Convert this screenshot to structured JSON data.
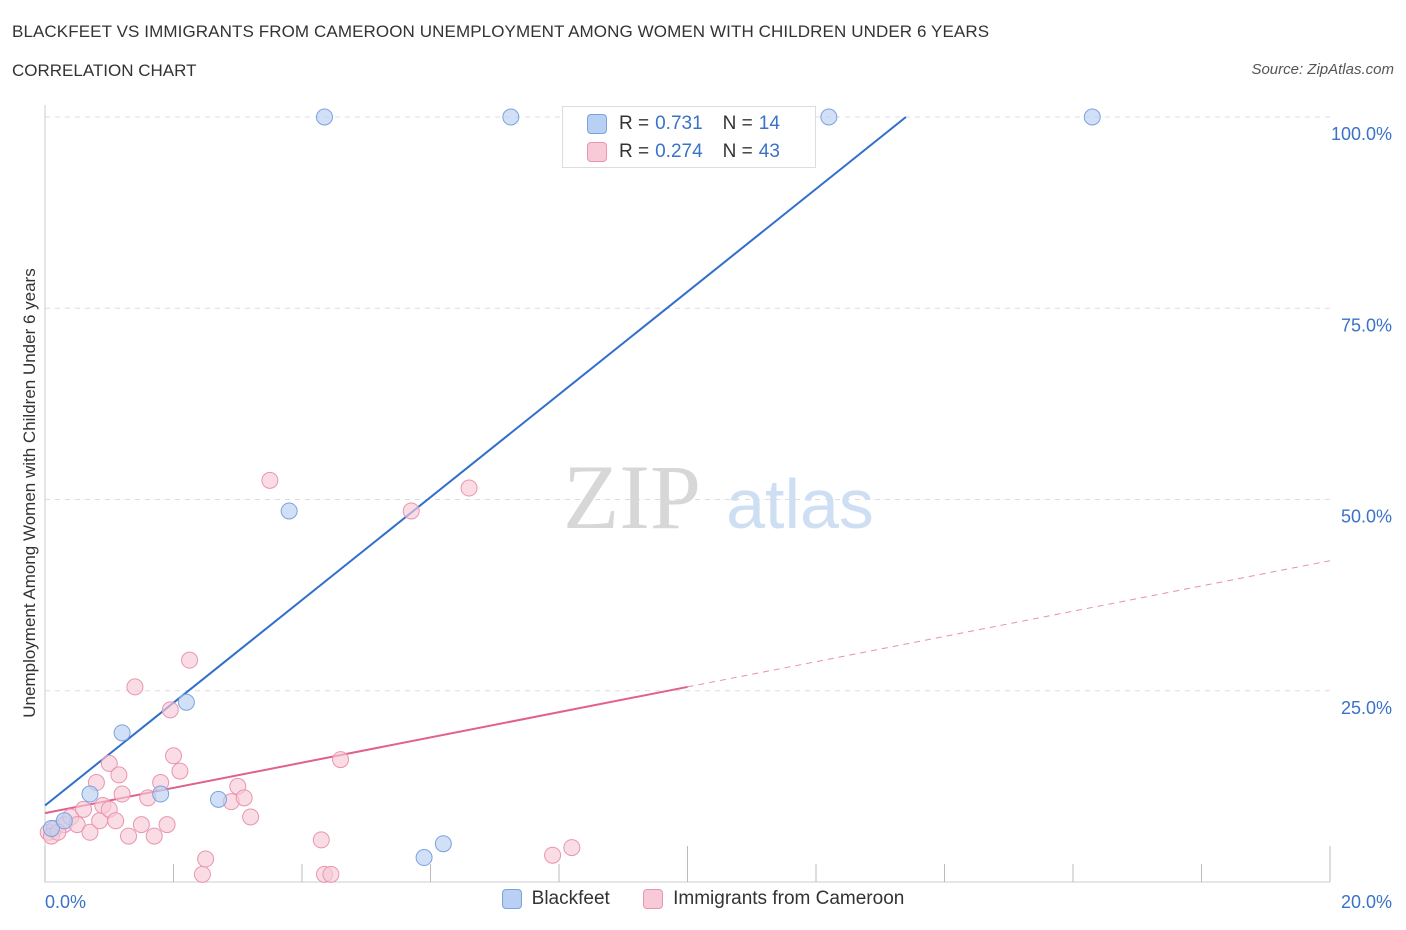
{
  "title": "BLACKFEET VS IMMIGRANTS FROM CAMEROON UNEMPLOYMENT AMONG WOMEN WITH CHILDREN UNDER 6 YEARS",
  "subtitle": "CORRELATION CHART",
  "source": "Source: ZipAtlas.com",
  "watermark": {
    "zip": "ZIP",
    "atlas": "atlas"
  },
  "legend_box": {
    "rows": [
      {
        "r_label": "R =",
        "r_value": "0.731",
        "n_label": "N =",
        "n_value": "14"
      },
      {
        "r_label": "R =",
        "r_value": "0.274",
        "n_label": "N =",
        "n_value": "43"
      }
    ]
  },
  "colors": {
    "blue_fill": "#b8d0f3",
    "blue_stroke": "#7aa3dd",
    "blue_line": "#2f6fcc",
    "pink_fill": "#f8c9d7",
    "pink_stroke": "#e995b0",
    "pink_line": "#e0608e",
    "grid": "#dddddd",
    "tick_label": "#3a72c8"
  },
  "chart_data": {
    "type": "scatter",
    "xlabel": "",
    "ylabel": "Unemployment Among Women with Children Under 6 years",
    "xlim": [
      0,
      20
    ],
    "ylim": [
      0,
      100
    ],
    "x_tick_labels": [
      {
        "value": 0,
        "label": "0.0%"
      },
      {
        "value": 20,
        "label": "20.0%"
      }
    ],
    "y_tick_labels": [
      {
        "value": 100,
        "label": "100.0%"
      },
      {
        "value": 75,
        "label": "75.0%"
      },
      {
        "value": 50,
        "label": "50.0%"
      },
      {
        "value": 25,
        "label": "25.0%"
      }
    ],
    "series": [
      {
        "name": "Blackfeet",
        "color_key": "blue",
        "points": [
          [
            0.1,
            7.0
          ],
          [
            0.3,
            8.0
          ],
          [
            0.7,
            11.5
          ],
          [
            1.2,
            19.5
          ],
          [
            1.8,
            11.5
          ],
          [
            2.2,
            23.5
          ],
          [
            2.7,
            10.8
          ],
          [
            3.8,
            48.5
          ],
          [
            4.35,
            100.0
          ],
          [
            5.9,
            3.2
          ],
          [
            6.2,
            5.0
          ],
          [
            7.25,
            100.0
          ],
          [
            12.2,
            100.0
          ],
          [
            16.3,
            100.0
          ]
        ],
        "trend": {
          "x0": 0.0,
          "y0": 10.0,
          "x1": 13.4,
          "y1": 100.0
        }
      },
      {
        "name": "Immigrants from Cameroon",
        "color_key": "pink",
        "points": [
          [
            0.05,
            6.5
          ],
          [
            0.15,
            7.0
          ],
          [
            0.3,
            7.5
          ],
          [
            0.4,
            8.5
          ],
          [
            0.5,
            7.5
          ],
          [
            0.6,
            9.5
          ],
          [
            0.7,
            6.5
          ],
          [
            0.8,
            13.0
          ],
          [
            0.85,
            8.0
          ],
          [
            0.9,
            10.0
          ],
          [
            1.0,
            9.5
          ],
          [
            1.0,
            15.5
          ],
          [
            1.1,
            8.0
          ],
          [
            1.15,
            14.0
          ],
          [
            1.2,
            11.5
          ],
          [
            1.3,
            6.0
          ],
          [
            1.4,
            25.5
          ],
          [
            1.5,
            7.5
          ],
          [
            1.6,
            11.0
          ],
          [
            1.7,
            6.0
          ],
          [
            1.8,
            13.0
          ],
          [
            1.9,
            7.5
          ],
          [
            1.95,
            22.5
          ],
          [
            2.0,
            16.5
          ],
          [
            2.1,
            14.5
          ],
          [
            2.25,
            29.0
          ],
          [
            2.45,
            1.0
          ],
          [
            2.5,
            3.0
          ],
          [
            2.9,
            10.5
          ],
          [
            3.0,
            12.5
          ],
          [
            3.1,
            11.0
          ],
          [
            3.2,
            8.5
          ],
          [
            3.5,
            52.5
          ],
          [
            4.3,
            5.5
          ],
          [
            4.35,
            1.0
          ],
          [
            4.45,
            1.0
          ],
          [
            4.6,
            16.0
          ],
          [
            5.7,
            48.5
          ],
          [
            6.6,
            51.5
          ],
          [
            7.9,
            3.5
          ],
          [
            8.2,
            4.5
          ],
          [
            0.1,
            6.0
          ],
          [
            0.2,
            6.5
          ]
        ],
        "trend": {
          "x0": 0.0,
          "y0": 9.0,
          "x1": 10.0,
          "y1": 25.5
        },
        "trend_ext": {
          "x0": 10.0,
          "y0": 25.5,
          "x1": 20.0,
          "y1": 42.0
        }
      }
    ]
  }
}
